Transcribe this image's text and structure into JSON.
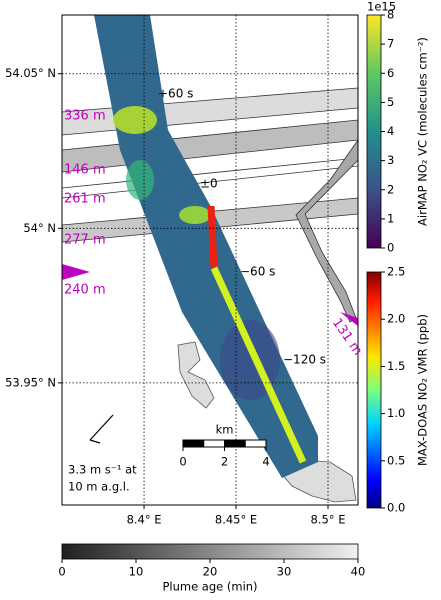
{
  "map": {
    "lat_ticks": [
      {
        "value": 54.05,
        "label": "54.05° N"
      },
      {
        "value": 54.0,
        "label": "54° N"
      },
      {
        "value": 53.95,
        "label": "53.95° N"
      }
    ],
    "lon_ticks": [
      {
        "value": 8.4,
        "label": "8.4° E"
      },
      {
        "value": 8.45,
        "label": "8.45° E"
      },
      {
        "value": 8.5,
        "label": "8.5° E"
      }
    ],
    "latlim": [
      53.9105,
      54.069
    ],
    "lonlim": [
      8.3554,
      8.5163
    ],
    "grid": true
  },
  "annotations": {
    "altitudes": [
      "336 m",
      "146 m",
      "261 m",
      "277 m",
      "240 m",
      "131 m"
    ],
    "times": [
      "+60 s",
      "±0",
      "−60 s",
      "−120 s"
    ]
  },
  "wind": {
    "lines": [
      "3.3 m s⁻¹ at",
      "10 m a.g.l."
    ]
  },
  "scale_bar": {
    "unit": "km",
    "ticks": [
      0,
      2,
      4
    ]
  },
  "colorbars": [
    {
      "label": "AirMAP NO₂ VC (molecules cm⁻²)",
      "exponent": "1e15",
      "lim": [
        0,
        8
      ],
      "ticks": [
        0,
        1,
        2,
        3,
        4,
        5,
        6,
        7,
        8
      ]
    },
    {
      "label": "MAX-DOAS NO₂ VMR (ppb)",
      "lim": [
        0,
        2.5
      ],
      "ticks": [
        {
          "value": 0,
          "label": "0.0"
        },
        {
          "value": 0.5,
          "label": "0.5"
        },
        {
          "value": 1,
          "label": "1.0"
        },
        {
          "value": 1.5,
          "label": "1.5"
        },
        {
          "value": 2,
          "label": "2.0"
        },
        {
          "value": 2.5,
          "label": "2.5"
        }
      ]
    },
    {
      "label": "Plume age (min)",
      "lim": [
        0,
        40
      ],
      "ticks": [
        0,
        10,
        20,
        30,
        40
      ]
    }
  ]
}
